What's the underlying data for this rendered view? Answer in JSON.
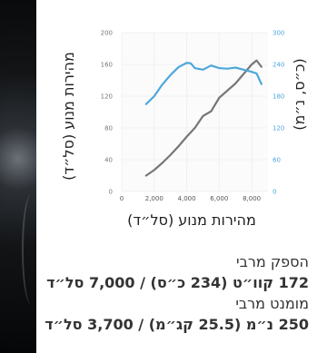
{
  "chart_data": {
    "type": "line",
    "xlabel": "מהירות מנוע (סל״ד)",
    "ylabel_left": "מהירות מנוע (סל״ד)",
    "ylabel_right": "(כ״ס, נ״מ)",
    "xticks": [
      "0",
      "2,000",
      "4,000",
      "6,000",
      "8,000"
    ],
    "yticks_left": [
      "0",
      "40",
      "80",
      "120",
      "160",
      "200"
    ],
    "yticks_right": [
      "0",
      "60",
      "120",
      "180",
      "240",
      "300"
    ],
    "xlim": [
      0,
      9000
    ],
    "ylim_left": [
      0,
      200
    ],
    "ylim_right": [
      0,
      300
    ],
    "grid": true,
    "series": [
      {
        "axis": "left",
        "color": "#777777",
        "x": [
          1500,
          2000,
          2500,
          3000,
          3500,
          4000,
          4500,
          5000,
          5500,
          6000,
          6500,
          7000,
          7500,
          8000,
          8300,
          8600
        ],
        "y": [
          20,
          27,
          36,
          46,
          57,
          69,
          80,
          95,
          101,
          118,
          127,
          136,
          148,
          160,
          165,
          157
        ]
      },
      {
        "axis": "right",
        "color": "#4da7db",
        "x": [
          1500,
          2000,
          2500,
          3000,
          3500,
          4000,
          4250,
          4500,
          5000,
          5500,
          6000,
          6500,
          7000,
          7500,
          8000,
          8300,
          8600
        ],
        "y": [
          165,
          180,
          202,
          220,
          235,
          243,
          242,
          233,
          230,
          238,
          233,
          232,
          234,
          230,
          226,
          223,
          203
        ]
      }
    ]
  },
  "specs": [
    {
      "title": "הספק מרבי",
      "value": "172 קוו״ט (234 כ״ס) / 7,000 סל״ד"
    },
    {
      "title": "מומנט מרבי",
      "value": "250 נ״מ (25.5 קג״מ) / 3,700 סל״ד"
    }
  ],
  "colors": {
    "grid": "#f0f0f0",
    "plot_bg": "#fbfbfb",
    "axis_text": "#555555",
    "left_tick": "#777777",
    "right_tick": "#4da7db",
    "left_label": "#222222",
    "right_label": "#222222"
  }
}
